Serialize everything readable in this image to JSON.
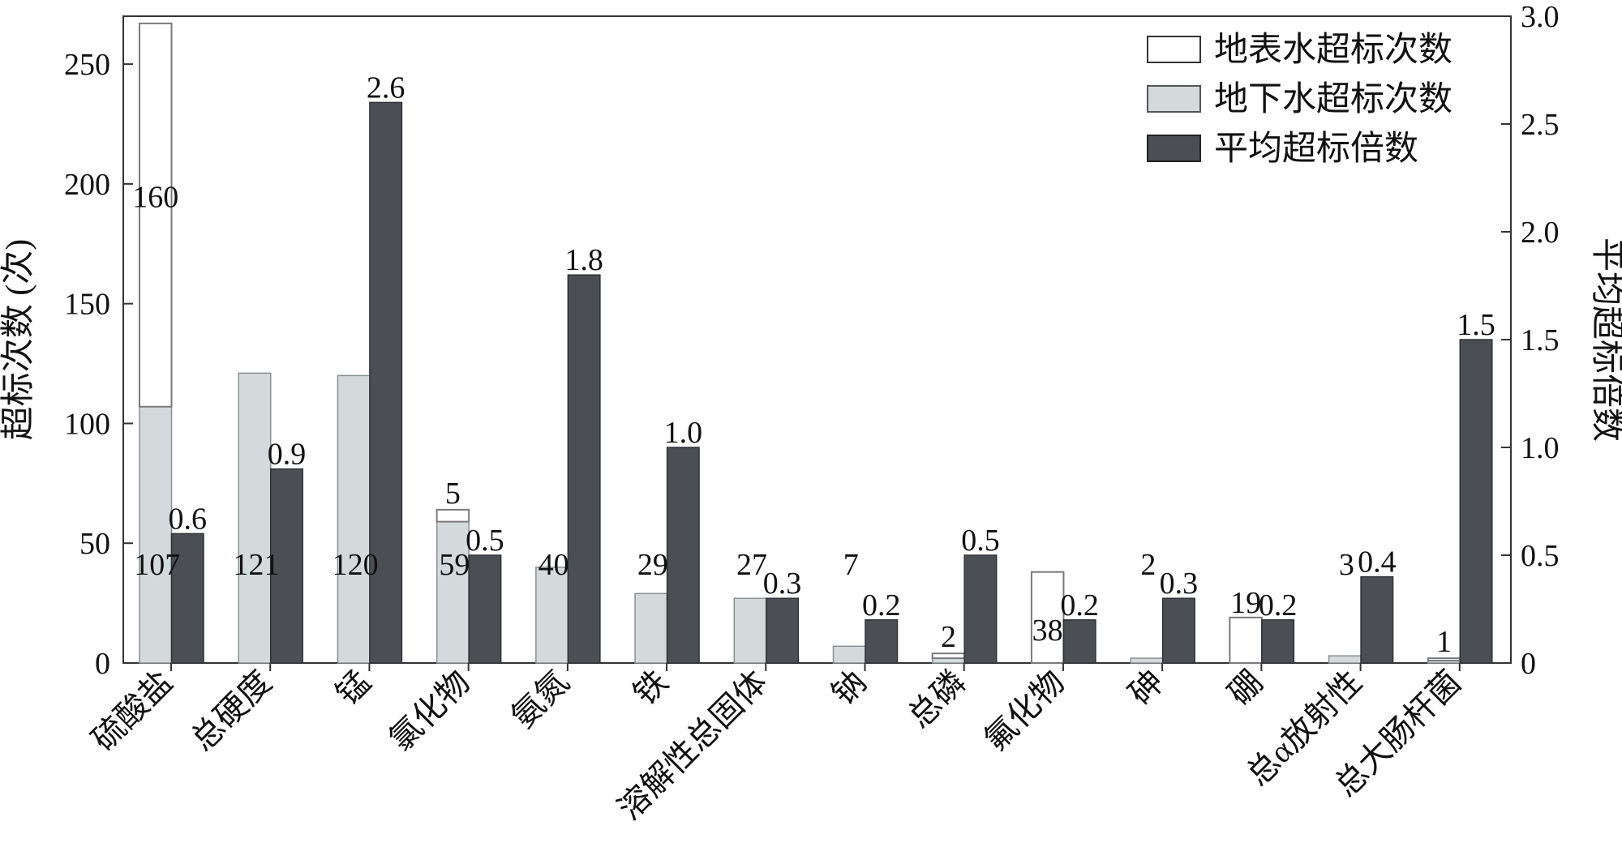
{
  "chart_data": {
    "type": "bar",
    "categories": [
      "硫酸盐",
      "总硬度",
      "锰",
      "氯化物",
      "氨氮",
      "铁",
      "溶解性总固体",
      "钠",
      "总磷",
      "氟化物",
      "砷",
      "硼",
      "总α放射性",
      "总大肠杆菌"
    ],
    "series": [
      {
        "name": "地下水超标次数",
        "axis": "left",
        "stack": "count",
        "values": [
          107,
          121,
          120,
          59,
          40,
          29,
          27,
          7,
          2,
          0,
          2,
          0,
          3,
          1
        ],
        "labels": [
          "107",
          "121",
          "120",
          "59",
          "40",
          "29",
          "27",
          "7",
          "",
          "",
          "2",
          "",
          "3",
          ""
        ]
      },
      {
        "name": "地表水超标次数",
        "axis": "left",
        "stack": "count",
        "values": [
          160,
          0,
          0,
          5,
          0,
          0,
          0,
          0,
          2,
          38,
          0,
          19,
          0,
          1
        ],
        "labels": [
          "160",
          "",
          "",
          "5",
          "",
          "",
          "",
          "",
          "2",
          "38",
          "",
          "19",
          "",
          "1"
        ]
      },
      {
        "name": "平均超标倍数",
        "axis": "right",
        "values": [
          0.6,
          0.9,
          2.6,
          0.5,
          1.8,
          1.0,
          0.3,
          0.2,
          0.5,
          0.2,
          0.3,
          0.2,
          0.4,
          1.5
        ],
        "labels": [
          "0.6",
          "0.9",
          "2.6",
          "0.5",
          "1.8",
          "1.0",
          "0.3",
          "0.2",
          "0.5",
          "0.2",
          "0.3",
          "0.2",
          "0.4",
          "1.5"
        ]
      }
    ],
    "ylabel": "超标次数 (次)",
    "ylabel_right": "平均超标倍数",
    "ylim": [
      0,
      270
    ],
    "yticks": [
      0,
      50,
      100,
      150,
      200,
      250
    ],
    "ylim_right": [
      0,
      3.0
    ],
    "yticks_right": [
      "0",
      "0.5",
      "1.0",
      "1.5",
      "2.0",
      "2.5",
      "3.0"
    ],
    "legend_position": "top-right",
    "grid": false,
    "colors": {
      "surface_fill": "#ffffff",
      "surface_stroke": "#7a7a7a",
      "ground_fill": "#d4dadc",
      "ground_stroke": "#8a8f91",
      "avg_fill": "#4b4f53",
      "avg_stroke": "#2f3236",
      "axis": "#333333"
    }
  }
}
